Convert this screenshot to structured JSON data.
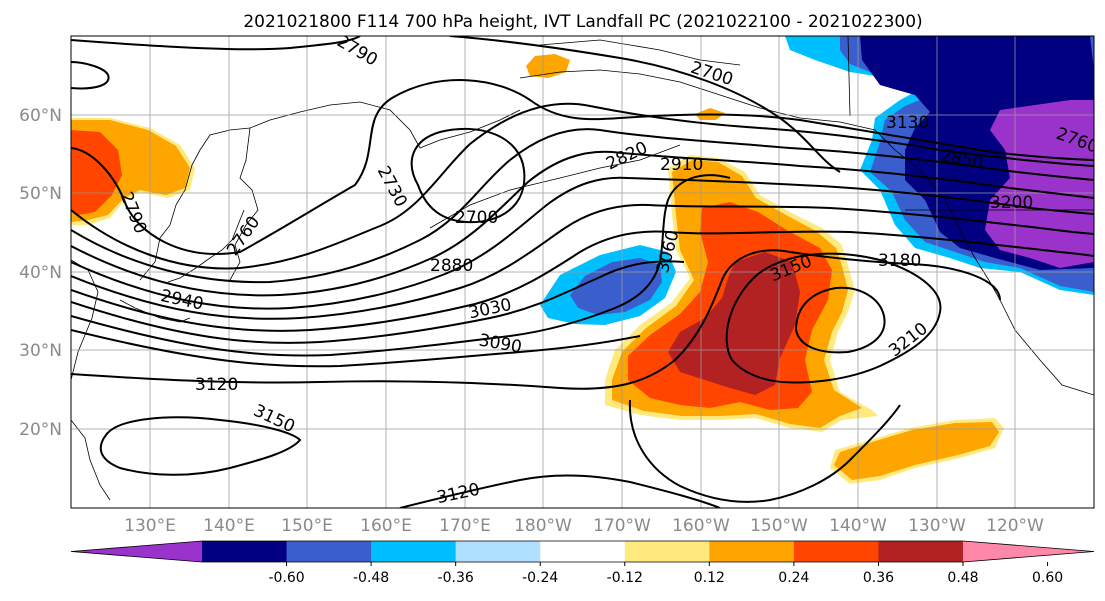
{
  "title": "2021021800 F114 700 hPa height, IVT Landfall PC (2021022100 - 2021022300)",
  "map": {
    "projection": "PlateCarree",
    "lon_range_deg_east": [
      120,
      250
    ],
    "lat_range_deg": [
      10,
      70
    ],
    "gridlines": true,
    "lat_labels": [
      "20°N",
      "30°N",
      "40°N",
      "50°N",
      "60°N"
    ],
    "lon_labels": [
      "130°E",
      "140°E",
      "150°E",
      "160°E",
      "170°E",
      "180°W",
      "170°W",
      "160°W",
      "150°W",
      "140°W",
      "130°W",
      "120°W"
    ],
    "contour_variable": "700 hPa height",
    "contour_labels": [
      "2700",
      "2700",
      "2730",
      "2760",
      "2790",
      "2790",
      "2820",
      "2850",
      "2880",
      "2910",
      "2940",
      "3030",
      "3060",
      "3090",
      "3120",
      "3120",
      "3130",
      "3150",
      "3150",
      "3180",
      "3200",
      "3210",
      "2760"
    ]
  },
  "colorbar": {
    "orientation": "horizontal",
    "extend": "both",
    "ticks": [
      "-0.60",
      "-0.48",
      "-0.36",
      "-0.24",
      "-0.12",
      "0.12",
      "0.24",
      "0.36",
      "0.48",
      "0.60"
    ],
    "colors": [
      "#9933cc",
      "#000080",
      "#3a5fcd",
      "#00bfff",
      "#b0e0ff",
      "#ffffff",
      "#ffea80",
      "#ffa500",
      "#ff4500",
      "#b22222",
      "#ff88aa"
    ]
  }
}
